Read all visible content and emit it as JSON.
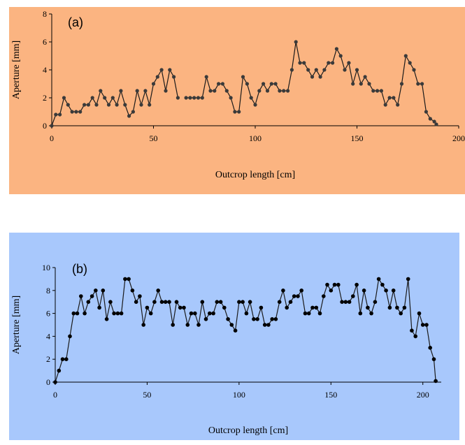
{
  "chart_data": [
    {
      "type": "line",
      "panel_label": "(a)",
      "background": "#fbb481",
      "xlabel": "Outcrop length [cm]",
      "ylabel": "Aperture [mm]",
      "xlim": [
        0,
        200
      ],
      "ylim": [
        0,
        8
      ],
      "xticks": [
        0,
        50,
        100,
        150,
        200
      ],
      "yticks": [
        0,
        2,
        4,
        6,
        8
      ],
      "grid": false,
      "segments": [
        [
          [
            0,
            0
          ],
          [
            2,
            0.8
          ],
          [
            4,
            0.8
          ],
          [
            6,
            2
          ],
          [
            8,
            1.5
          ],
          [
            10,
            1
          ],
          [
            12,
            1
          ],
          [
            14,
            1
          ],
          [
            16,
            1.5
          ],
          [
            18,
            1.5
          ],
          [
            20,
            2
          ],
          [
            22,
            1.5
          ],
          [
            24,
            2.5
          ],
          [
            26,
            2
          ],
          [
            28,
            1.5
          ],
          [
            30,
            2
          ],
          [
            32,
            1.5
          ],
          [
            34,
            2.5
          ],
          [
            36,
            1.5
          ],
          [
            38,
            0.7
          ],
          [
            40,
            1
          ],
          [
            42,
            2.5
          ],
          [
            44,
            1.5
          ],
          [
            46,
            2.5
          ],
          [
            48,
            1.5
          ],
          [
            50,
            3
          ],
          [
            52,
            3.5
          ],
          [
            54,
            4
          ],
          [
            56,
            2.5
          ],
          [
            58,
            4
          ],
          [
            60,
            3.5
          ],
          [
            62,
            2
          ]
        ],
        [
          [
            66,
            2
          ],
          [
            68,
            2
          ],
          [
            70,
            2
          ],
          [
            72,
            2
          ],
          [
            74,
            2
          ],
          [
            76,
            3.5
          ],
          [
            78,
            2.5
          ],
          [
            80,
            2.5
          ],
          [
            82,
            3
          ],
          [
            84,
            3
          ],
          [
            86,
            2.5
          ],
          [
            88,
            2
          ],
          [
            90,
            1
          ],
          [
            92,
            1
          ],
          [
            94,
            3.5
          ],
          [
            96,
            3
          ],
          [
            98,
            2
          ],
          [
            100,
            1.5
          ],
          [
            102,
            2.5
          ],
          [
            104,
            3
          ],
          [
            106,
            2.5
          ],
          [
            108,
            3
          ],
          [
            110,
            3
          ],
          [
            112,
            2.5
          ],
          [
            114,
            2.5
          ],
          [
            116,
            2.5
          ],
          [
            118,
            4
          ],
          [
            120,
            6
          ],
          [
            122,
            4.5
          ],
          [
            124,
            4.5
          ],
          [
            126,
            4
          ],
          [
            128,
            3.5
          ],
          [
            130,
            4
          ],
          [
            132,
            3.5
          ],
          [
            134,
            4
          ],
          [
            136,
            4.5
          ],
          [
            138,
            4.5
          ],
          [
            140,
            5.5
          ],
          [
            142,
            5
          ],
          [
            144,
            4
          ],
          [
            146,
            4.5
          ],
          [
            148,
            3
          ],
          [
            150,
            4
          ],
          [
            152,
            3
          ],
          [
            154,
            3.5
          ],
          [
            156,
            3
          ],
          [
            158,
            2.5
          ],
          [
            160,
            2.5
          ],
          [
            162,
            2.5
          ],
          [
            164,
            1.5
          ],
          [
            166,
            2
          ],
          [
            168,
            2
          ],
          [
            170,
            1.5
          ],
          [
            172,
            3
          ],
          [
            174,
            5
          ],
          [
            176,
            4.5
          ],
          [
            178,
            4
          ],
          [
            180,
            3
          ],
          [
            182,
            3
          ],
          [
            184,
            1
          ],
          [
            186,
            0.5
          ],
          [
            188,
            0.3
          ],
          [
            189,
            0.1
          ]
        ]
      ]
    },
    {
      "type": "line",
      "panel_label": "(b)",
      "background": "#a8c8fc",
      "xlabel": "Outcrop length [cm]",
      "ylabel": "Aperture [mm]",
      "xlim": [
        0,
        210
      ],
      "ylim": [
        0,
        10
      ],
      "xticks": [
        0,
        50,
        100,
        150,
        200
      ],
      "yticks": [
        0,
        2,
        4,
        6,
        8,
        10
      ],
      "grid": false,
      "segments": [
        [
          [
            0,
            0
          ],
          [
            2,
            1
          ],
          [
            4,
            2
          ],
          [
            6,
            2
          ],
          [
            8,
            4
          ],
          [
            10,
            6
          ],
          [
            12,
            6
          ],
          [
            14,
            7.5
          ],
          [
            16,
            6
          ],
          [
            18,
            7
          ],
          [
            20,
            7.5
          ],
          [
            22,
            8
          ],
          [
            24,
            6.5
          ],
          [
            26,
            8
          ],
          [
            28,
            5.5
          ],
          [
            30,
            7
          ],
          [
            32,
            6
          ],
          [
            34,
            6
          ],
          [
            36,
            6
          ],
          [
            38,
            9
          ],
          [
            40,
            9
          ],
          [
            42,
            8
          ],
          [
            44,
            7
          ],
          [
            46,
            7.5
          ],
          [
            48,
            5
          ],
          [
            50,
            6.5
          ],
          [
            52,
            6
          ],
          [
            54,
            7
          ],
          [
            56,
            8
          ],
          [
            58,
            7
          ],
          [
            60,
            7
          ],
          [
            62,
            7
          ],
          [
            64,
            5
          ],
          [
            66,
            7
          ],
          [
            68,
            6.5
          ],
          [
            70,
            6.5
          ],
          [
            72,
            5
          ],
          [
            74,
            6
          ],
          [
            76,
            6
          ],
          [
            78,
            5
          ],
          [
            80,
            7
          ],
          [
            82,
            5.5
          ],
          [
            84,
            6
          ],
          [
            86,
            6
          ],
          [
            88,
            7
          ],
          [
            90,
            7
          ],
          [
            92,
            6.5
          ],
          [
            94,
            5.5
          ],
          [
            96,
            5
          ],
          [
            98,
            4.5
          ],
          [
            100,
            7
          ],
          [
            102,
            7
          ],
          [
            104,
            6
          ],
          [
            106,
            7
          ],
          [
            108,
            5.5
          ],
          [
            110,
            5.5
          ],
          [
            112,
            6.5
          ],
          [
            114,
            5
          ],
          [
            116,
            5
          ],
          [
            118,
            5.5
          ],
          [
            120,
            5.5
          ],
          [
            122,
            7
          ],
          [
            124,
            8
          ],
          [
            126,
            6.5
          ],
          [
            128,
            7
          ],
          [
            130,
            7.5
          ],
          [
            132,
            7.5
          ],
          [
            134,
            8
          ],
          [
            136,
            6
          ],
          [
            138,
            6
          ],
          [
            140,
            6.5
          ],
          [
            142,
            6.5
          ],
          [
            144,
            6
          ],
          [
            146,
            7.5
          ],
          [
            148,
            8.5
          ],
          [
            150,
            8
          ],
          [
            152,
            8.5
          ],
          [
            154,
            8.5
          ],
          [
            156,
            7
          ],
          [
            158,
            7
          ],
          [
            160,
            7
          ],
          [
            162,
            7.5
          ],
          [
            164,
            8.5
          ],
          [
            166,
            6
          ],
          [
            168,
            8
          ],
          [
            170,
            6.5
          ],
          [
            172,
            6
          ],
          [
            174,
            7
          ],
          [
            176,
            9
          ],
          [
            178,
            8.5
          ],
          [
            180,
            8
          ],
          [
            182,
            6.5
          ],
          [
            184,
            8
          ],
          [
            186,
            6.5
          ],
          [
            188,
            6
          ],
          [
            190,
            6.5
          ],
          [
            192,
            9
          ],
          [
            194,
            4.5
          ],
          [
            196,
            4
          ],
          [
            198,
            6
          ],
          [
            200,
            5
          ],
          [
            202,
            5
          ],
          [
            204,
            3
          ],
          [
            206,
            2
          ],
          [
            207,
            0.1
          ]
        ]
      ]
    }
  ]
}
